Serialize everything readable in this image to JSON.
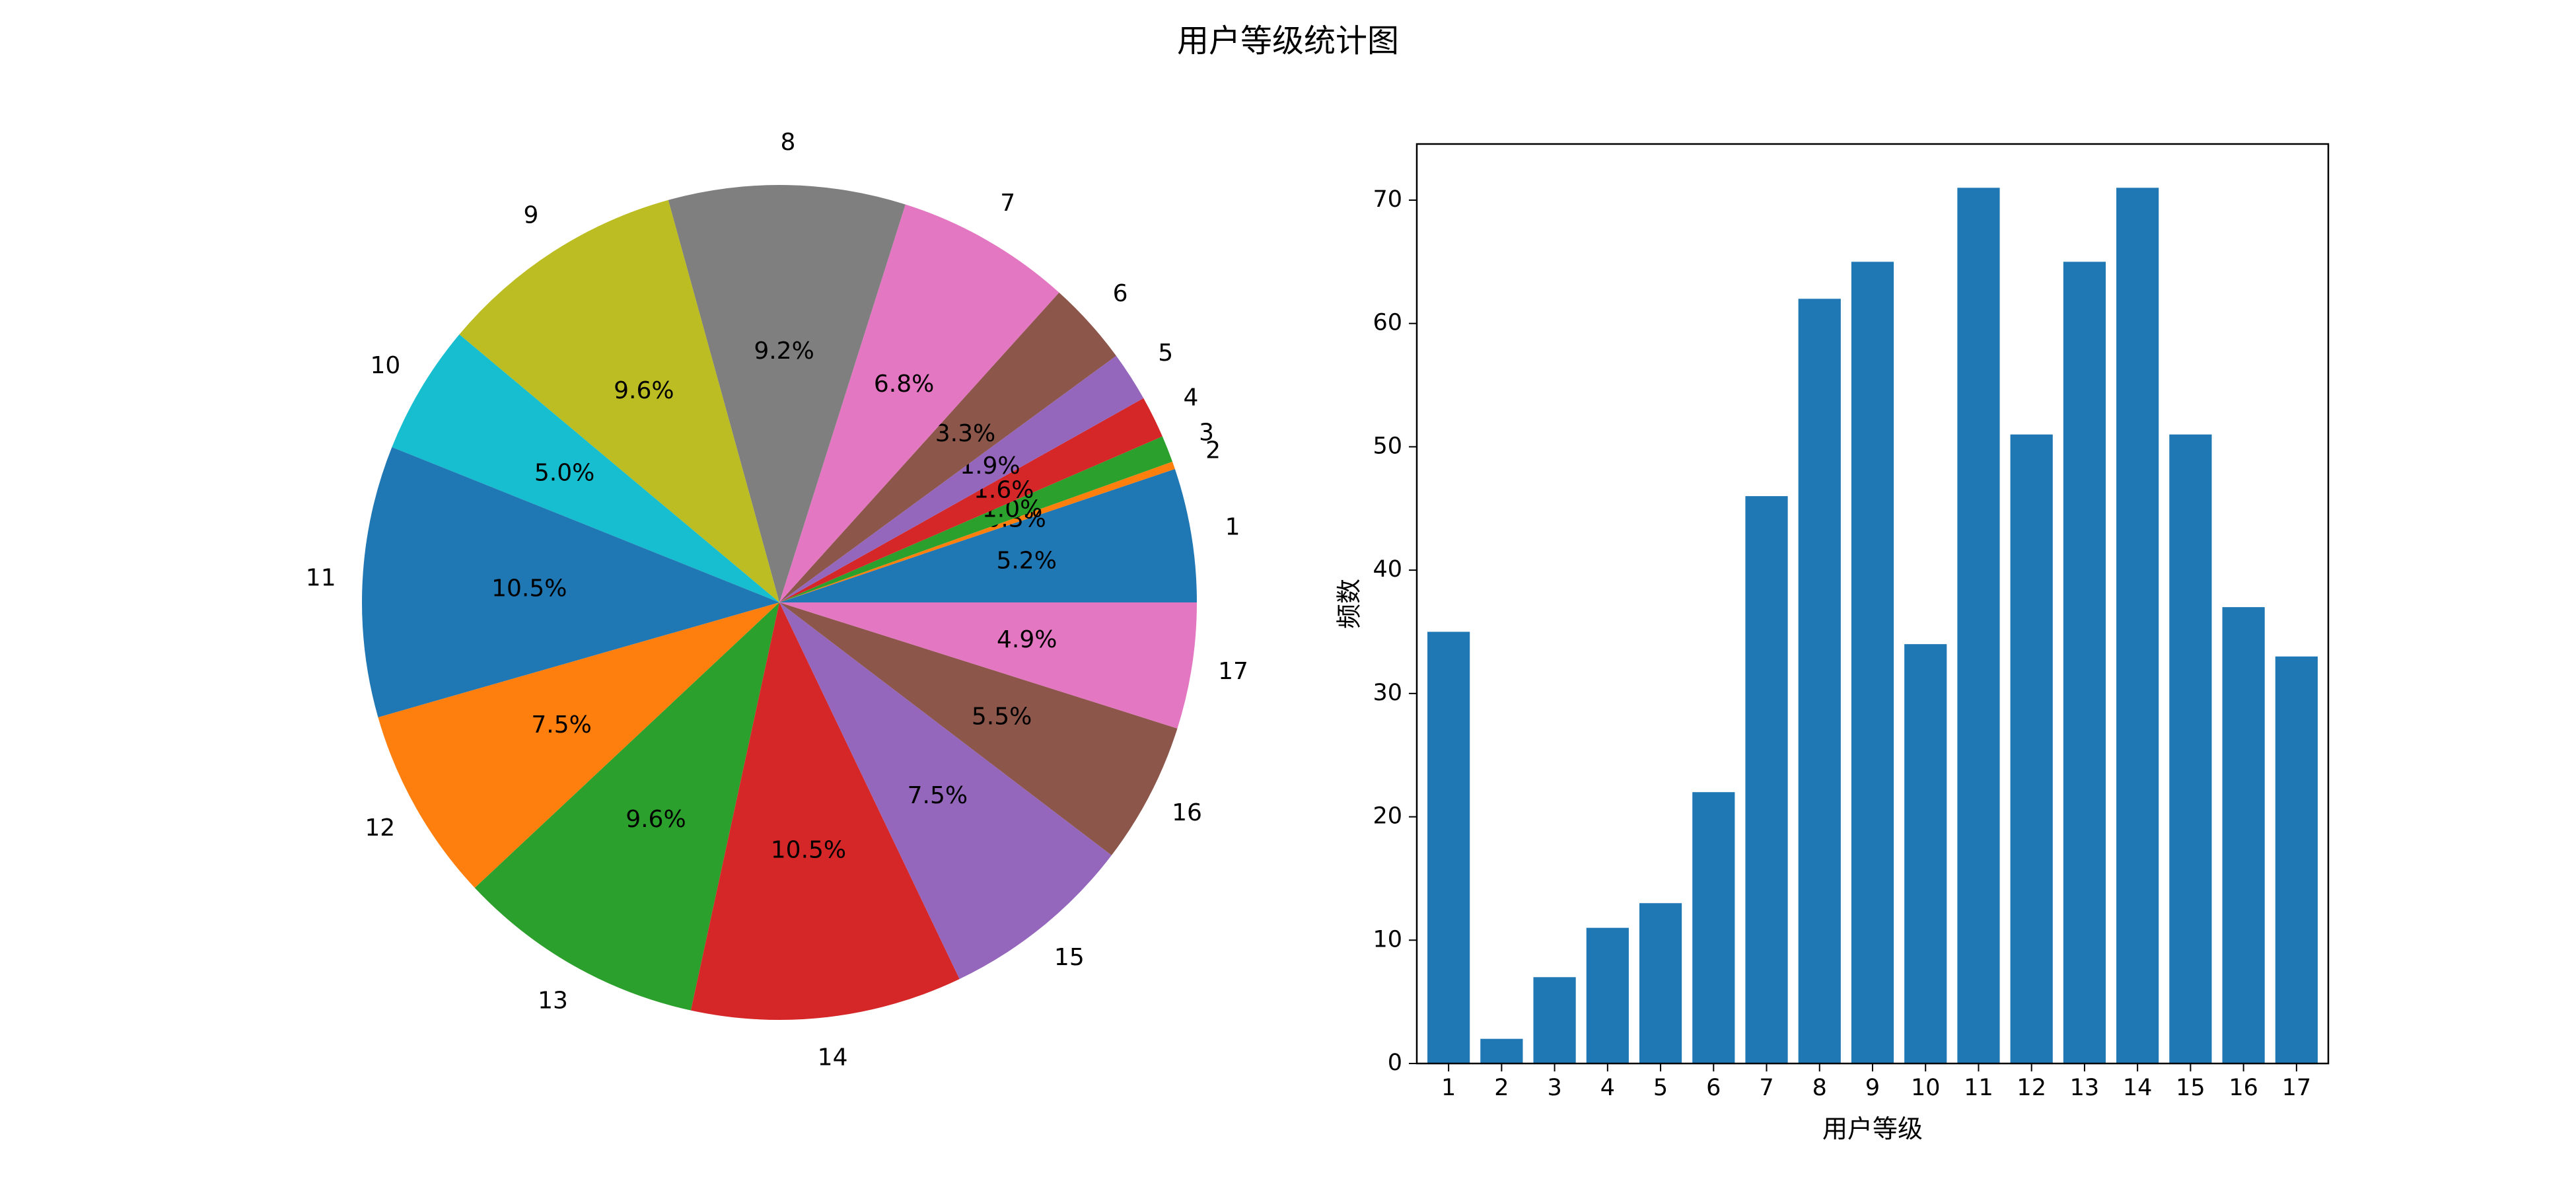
{
  "figure": {
    "title": "用户等级统计图"
  },
  "chart_data": [
    {
      "type": "pie",
      "categories": [
        "1",
        "2",
        "3",
        "4",
        "5",
        "6",
        "7",
        "8",
        "9",
        "10",
        "11",
        "12",
        "13",
        "14",
        "15",
        "16",
        "17"
      ],
      "values": [
        35,
        2,
        7,
        11,
        13,
        22,
        46,
        62,
        65,
        34,
        71,
        51,
        65,
        71,
        51,
        37,
        33
      ],
      "pct_labels": [
        "5.2%",
        "0.3%",
        "1.0%",
        "1.6%",
        "1.9%",
        "3.3%",
        "6.8%",
        "9.2%",
        "9.6%",
        "5.0%",
        "10.5%",
        "7.5%",
        "9.6%",
        "10.5%",
        "7.5%",
        "5.5%",
        "4.9%"
      ],
      "colors": [
        "#1f77b4",
        "#ff7f0e",
        "#2ca02c",
        "#d62728",
        "#9467bd",
        "#8c564b",
        "#e377c2",
        "#7f7f7f",
        "#bcbd22",
        "#17becf",
        "#1f77b4",
        "#ff7f0e",
        "#2ca02c",
        "#d62728",
        "#9467bd",
        "#8c564b",
        "#e377c2"
      ],
      "start_angle_deg": 0,
      "direction": "counterclockwise"
    },
    {
      "type": "bar",
      "categories": [
        "1",
        "2",
        "3",
        "4",
        "5",
        "6",
        "7",
        "8",
        "9",
        "10",
        "11",
        "12",
        "13",
        "14",
        "15",
        "16",
        "17"
      ],
      "values": [
        35,
        2,
        7,
        11,
        13,
        22,
        46,
        62,
        65,
        34,
        71,
        51,
        65,
        71,
        51,
        37,
        33
      ],
      "xlabel": "用户等级",
      "ylabel": "频数",
      "ylim": [
        0,
        74.55
      ],
      "yticks": [
        "0",
        "10",
        "20",
        "30",
        "40",
        "50",
        "60",
        "70"
      ],
      "bar_color": "#1f77b4",
      "grid": false
    }
  ]
}
